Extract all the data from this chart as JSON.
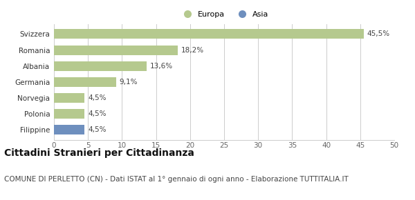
{
  "categories": [
    "Filippine",
    "Polonia",
    "Norvegia",
    "Germania",
    "Albania",
    "Romania",
    "Svizzera"
  ],
  "values": [
    4.5,
    4.5,
    4.5,
    9.1,
    13.6,
    18.2,
    45.5
  ],
  "labels": [
    "4,5%",
    "4,5%",
    "4,5%",
    "9,1%",
    "13,6%",
    "18,2%",
    "45,5%"
  ],
  "colors": [
    "#6e8fbe",
    "#b5c98e",
    "#b5c98e",
    "#b5c98e",
    "#b5c98e",
    "#b5c98e",
    "#b5c98e"
  ],
  "legend_items": [
    {
      "label": "Europa",
      "color": "#b5c98e"
    },
    {
      "label": "Asia",
      "color": "#6e8fbe"
    }
  ],
  "xlim": [
    0,
    50
  ],
  "xticks": [
    0,
    5,
    10,
    15,
    20,
    25,
    30,
    35,
    40,
    45,
    50
  ],
  "title": "Cittadini Stranieri per Cittadinanza",
  "subtitle": "COMUNE DI PERLETTO (CN) - Dati ISTAT al 1° gennaio di ogni anno - Elaborazione TUTTITALIA.IT",
  "title_fontsize": 10,
  "subtitle_fontsize": 7.5,
  "label_fontsize": 7.5,
  "tick_fontsize": 7.5,
  "bar_height": 0.6,
  "background_color": "#ffffff",
  "grid_color": "#cccccc"
}
